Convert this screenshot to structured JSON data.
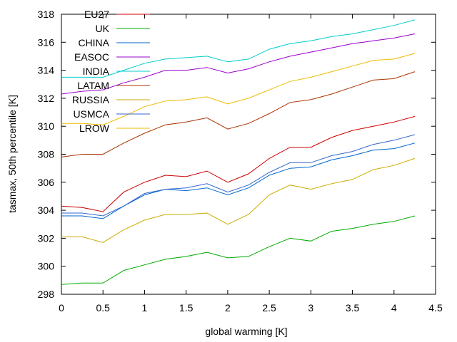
{
  "chart_data": {
    "type": "line",
    "xlabel": "global warming [K]",
    "ylabel": "tasmax, 50th percentile [K]",
    "xlim": [
      0,
      4.5
    ],
    "ylim": [
      298,
      318
    ],
    "xticks": [
      "0",
      "0.5",
      "1",
      "1.5",
      "2",
      "2.5",
      "3",
      "3.5",
      "4",
      "4.5"
    ],
    "yticks": [
      "298",
      "300",
      "302",
      "304",
      "306",
      "308",
      "310",
      "312",
      "314",
      "316",
      "318"
    ],
    "grid": false,
    "legend_position": "top-left",
    "x": [
      0,
      0.25,
      0.5,
      0.75,
      1.0,
      1.25,
      1.5,
      1.75,
      2.0,
      2.25,
      2.5,
      2.75,
      3.0,
      3.25,
      3.5,
      3.75,
      4.0,
      4.25
    ],
    "series": [
      {
        "name": "EU27",
        "color": "#cc0000",
        "values": [
          304.3,
          304.2,
          303.9,
          305.3,
          306.0,
          306.5,
          306.4,
          306.8,
          306.0,
          306.6,
          307.7,
          308.5,
          308.5,
          309.2,
          309.7,
          310.0,
          310.3,
          310.7
        ]
      },
      {
        "name": "UK",
        "color": "#00aa00",
        "values": [
          298.7,
          298.8,
          298.8,
          299.7,
          300.1,
          300.5,
          300.7,
          301.0,
          300.6,
          300.7,
          301.4,
          302.0,
          301.8,
          302.5,
          302.7,
          303.0,
          303.2,
          303.6
        ]
      },
      {
        "name": "CHINA",
        "color": "#0066cc",
        "values": [
          303.6,
          303.6,
          303.4,
          304.3,
          305.1,
          305.5,
          305.4,
          305.6,
          305.1,
          305.6,
          306.5,
          307.0,
          307.1,
          307.6,
          307.9,
          308.3,
          308.4,
          308.8
        ]
      },
      {
        "name": "EASOC",
        "color": "#9900cc",
        "values": [
          312.3,
          312.5,
          312.6,
          313.1,
          313.5,
          314.0,
          314.0,
          314.2,
          313.8,
          314.1,
          314.6,
          315.0,
          315.3,
          315.6,
          315.9,
          316.1,
          316.3,
          316.6
        ]
      },
      {
        "name": "INDIA",
        "color": "#00cccc",
        "values": [
          313.5,
          313.5,
          313.5,
          314.0,
          314.5,
          314.8,
          314.9,
          315.0,
          314.6,
          314.8,
          315.5,
          315.9,
          316.1,
          316.4,
          316.6,
          316.9,
          317.2,
          317.6
        ]
      },
      {
        "name": "LATAM",
        "color": "#aa3300",
        "values": [
          307.8,
          308.0,
          308.0,
          308.8,
          309.5,
          310.1,
          310.3,
          310.6,
          309.8,
          310.2,
          310.9,
          311.7,
          311.9,
          312.3,
          312.8,
          313.3,
          313.4,
          313.9
        ]
      },
      {
        "name": "RUSSIA",
        "color": "#ccaa00",
        "values": [
          302.1,
          302.1,
          301.7,
          302.6,
          303.3,
          303.7,
          303.7,
          303.8,
          303.0,
          303.7,
          305.1,
          305.8,
          305.5,
          305.9,
          306.2,
          306.9,
          307.2,
          307.7
        ]
      },
      {
        "name": "USMCA",
        "color": "#3366cc",
        "values": [
          303.8,
          303.8,
          303.6,
          304.3,
          305.2,
          305.5,
          305.6,
          305.9,
          305.3,
          305.8,
          306.7,
          307.4,
          307.4,
          307.9,
          308.2,
          308.7,
          309.0,
          309.4
        ]
      },
      {
        "name": "LROW",
        "color": "#eebb00",
        "values": [
          310.2,
          310.2,
          310.1,
          310.7,
          311.4,
          311.8,
          311.9,
          312.1,
          311.6,
          312.0,
          312.6,
          313.2,
          313.5,
          313.9,
          314.3,
          314.7,
          314.8,
          315.2
        ]
      }
    ]
  }
}
